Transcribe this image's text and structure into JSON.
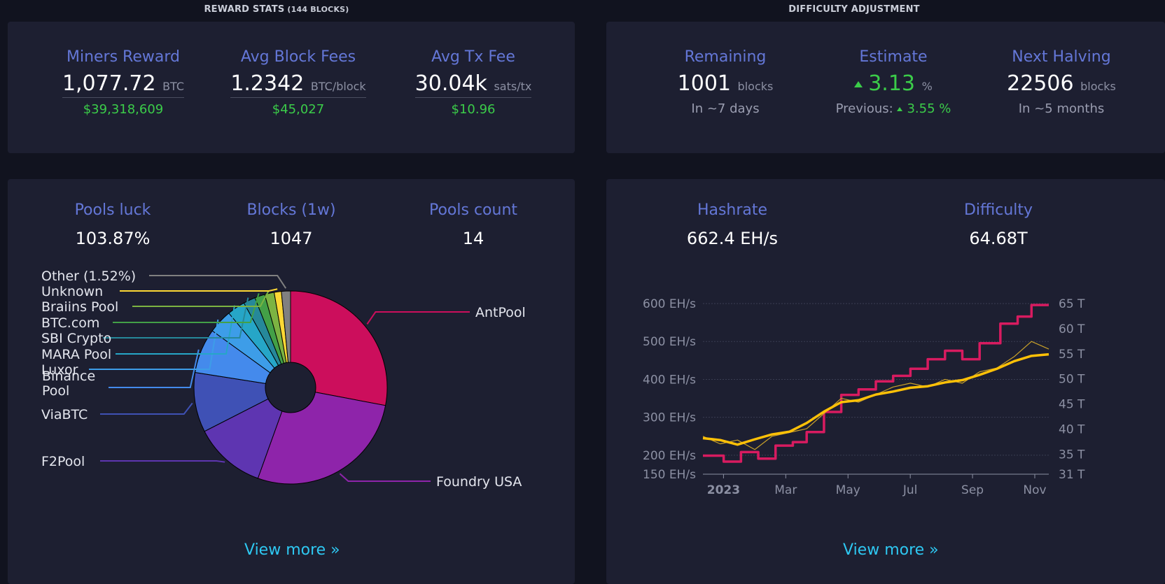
{
  "reward_stats": {
    "title": "REWARD STATS",
    "subtitle": "(144 BLOCKS)",
    "miners_reward": {
      "label": "Miners Reward",
      "value": "1,077.72",
      "unit": "BTC",
      "fiat": "$39,318,609"
    },
    "avg_block_fees": {
      "label": "Avg Block Fees",
      "value": "1.2342",
      "unit": "BTC/block",
      "fiat": "$45,027"
    },
    "avg_tx_fee": {
      "label": "Avg Tx Fee",
      "value": "30.04k",
      "unit": "sats/tx",
      "fiat": "$10.96"
    }
  },
  "difficulty_adjustment": {
    "title": "DIFFICULTY ADJUSTMENT",
    "remaining": {
      "label": "Remaining",
      "value": "1001",
      "unit": "blocks",
      "sub": "In ~7 days"
    },
    "estimate": {
      "label": "Estimate",
      "value": "3.13",
      "unit": "%",
      "previous_label": "Previous:",
      "previous_value": "3.55",
      "previous_unit": "%",
      "direction_icon": "triangle-up-icon"
    },
    "next_halving": {
      "label": "Next Halving",
      "value": "22506",
      "unit": "blocks",
      "sub": "In ~5 months"
    }
  },
  "pools": {
    "pools_luck": {
      "label": "Pools luck",
      "value": "103.87%"
    },
    "blocks_1w": {
      "label": "Blocks (1w)",
      "value": "1047"
    },
    "pools_count": {
      "label": "Pools count",
      "value": "14"
    },
    "view_more": "View more »"
  },
  "hashrate_panel": {
    "hashrate": {
      "label": "Hashrate",
      "value": "662.4 EH/s"
    },
    "difficulty": {
      "label": "Difficulty",
      "value": "64.68T"
    },
    "view_more": "View more »"
  },
  "colors": {
    "accent_label": "#6477d7",
    "fiat_green": "#3bcc49",
    "link": "#2ec8f2",
    "panel": "#1d1f31",
    "background": "#11131f"
  },
  "chart_data": [
    {
      "type": "pie",
      "donut": true,
      "slices": [
        {
          "name": "AntPool",
          "value": 28.0,
          "color": "#cc0e5c"
        },
        {
          "name": "Foundry USA",
          "value": 27.5,
          "color": "#8e24aa"
        },
        {
          "name": "F2Pool",
          "value": 12.0,
          "color": "#5e35b1"
        },
        {
          "name": "ViaBTC",
          "value": 10.0,
          "color": "#3f51b5"
        },
        {
          "name": "Binance Pool",
          "value": 7.5,
          "color": "#448aec"
        },
        {
          "name": "Luxor",
          "value": 4.0,
          "color": "#3d9de8"
        },
        {
          "name": "MARA Pool",
          "value": 3.0,
          "color": "#26a6c7"
        },
        {
          "name": "SBI Crypto",
          "value": 2.0,
          "color": "#26889a"
        },
        {
          "name": "BTC.com",
          "value": 1.7,
          "color": "#43a047"
        },
        {
          "name": "Braiins Pool",
          "value": 1.6,
          "color": "#7cb342"
        },
        {
          "name": "Unknown",
          "value": 1.2,
          "color": "#fdd835"
        },
        {
          "name": "Other (1.52%)",
          "value": 1.52,
          "color": "#808080"
        }
      ]
    },
    {
      "type": "line",
      "x_ticks": [
        "2023",
        "Mar",
        "May",
        "Jul",
        "Sep",
        "Nov"
      ],
      "y_left_ticks": [
        "600 EH/s",
        "500 EH/s",
        "400 EH/s",
        "300 EH/s",
        "200 EH/s",
        "150 EH/s"
      ],
      "y_left_values": [
        600,
        500,
        400,
        300,
        200,
        150
      ],
      "y_left_range": [
        150,
        600
      ],
      "y_right_ticks": [
        "65 T",
        "60 T",
        "55 T",
        "50 T",
        "45 T",
        "40 T",
        "35 T",
        "31 T"
      ],
      "y_right_values": [
        65,
        60,
        55,
        50,
        45,
        40,
        35,
        31
      ],
      "y_right_range": [
        31,
        65
      ],
      "series": [
        {
          "name": "Difficulty",
          "axis": "right",
          "color": "#d81b60",
          "x": [
            0,
            0.06,
            0.06,
            0.11,
            0.11,
            0.16,
            0.16,
            0.21,
            0.21,
            0.26,
            0.26,
            0.3,
            0.3,
            0.35,
            0.35,
            0.4,
            0.4,
            0.45,
            0.45,
            0.5,
            0.5,
            0.55,
            0.55,
            0.6,
            0.6,
            0.65,
            0.65,
            0.7,
            0.7,
            0.75,
            0.75,
            0.8,
            0.8,
            0.86,
            0.86,
            0.91,
            0.91,
            0.95,
            0.95,
            1.0
          ],
          "y": [
            34.7,
            34.7,
            33.5,
            33.5,
            35.4,
            35.4,
            34.1,
            34.1,
            36.7,
            36.7,
            37.4,
            37.4,
            39.4,
            39.4,
            43.4,
            43.4,
            46.8,
            46.8,
            47.9,
            47.9,
            49.5,
            49.5,
            50.6,
            50.6,
            52.0,
            52.0,
            53.9,
            53.9,
            55.6,
            55.6,
            53.9,
            53.9,
            57.1,
            57.1,
            61.0,
            61.0,
            62.4,
            62.4,
            64.7,
            64.7
          ]
        },
        {
          "name": "Hashrate (daily)",
          "axis": "left",
          "color": "#c9a12a",
          "x": [
            0,
            0.05,
            0.1,
            0.15,
            0.2,
            0.25,
            0.3,
            0.35,
            0.4,
            0.45,
            0.5,
            0.55,
            0.6,
            0.65,
            0.7,
            0.75,
            0.8,
            0.85,
            0.9,
            0.95,
            1.0
          ],
          "y": [
            250,
            230,
            240,
            215,
            250,
            260,
            270,
            310,
            350,
            340,
            360,
            380,
            390,
            380,
            400,
            390,
            420,
            430,
            460,
            500,
            480
          ]
        },
        {
          "name": "Hashrate (MA)",
          "axis": "left",
          "color": "#ffc107",
          "x": [
            0,
            0.05,
            0.1,
            0.15,
            0.2,
            0.25,
            0.3,
            0.35,
            0.4,
            0.45,
            0.5,
            0.55,
            0.6,
            0.65,
            0.7,
            0.75,
            0.8,
            0.85,
            0.9,
            0.95,
            1.0
          ],
          "y": [
            245,
            240,
            228,
            242,
            255,
            262,
            285,
            315,
            340,
            345,
            360,
            368,
            378,
            382,
            392,
            398,
            412,
            428,
            448,
            462,
            466
          ]
        }
      ]
    }
  ]
}
